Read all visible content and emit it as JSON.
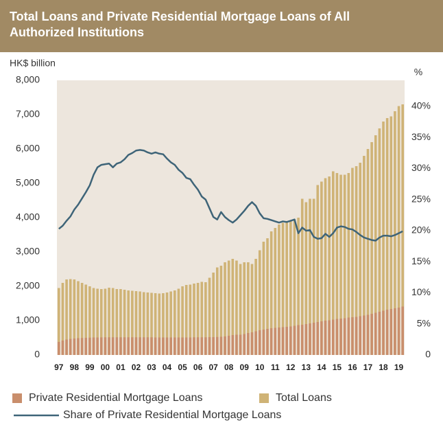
{
  "chart_data": {
    "type": "bar",
    "title": "Total Loans and Private Residential Mortgage Loans of All Authorized Institutions",
    "y_label": "HK$ billion",
    "y2_label": "%",
    "categories": [
      "97",
      null,
      null,
      null,
      "98",
      null,
      null,
      null,
      "99",
      null,
      null,
      null,
      "00",
      null,
      null,
      null,
      "01",
      null,
      null,
      null,
      "02",
      null,
      null,
      null,
      "03",
      null,
      null,
      null,
      "04",
      null,
      null,
      null,
      "05",
      null,
      null,
      null,
      "06",
      null,
      null,
      null,
      "07",
      null,
      null,
      null,
      "08",
      null,
      null,
      null,
      "09",
      null,
      null,
      null,
      "10",
      null,
      null,
      null,
      "11",
      null,
      null,
      null,
      "12",
      null,
      null,
      null,
      "13",
      null,
      null,
      null,
      "14",
      null,
      null,
      null,
      "15",
      null,
      null,
      null,
      "16",
      null,
      null,
      null,
      "17",
      null,
      null,
      null,
      "18",
      null,
      null,
      null,
      "19",
      null
    ],
    "series": [
      {
        "name": "Private Residential Mortgage Loans",
        "color": "#c98e6c",
        "values": [
          380,
          420,
          450,
          470,
          480,
          490,
          495,
          500,
          505,
          510,
          510,
          512,
          515,
          515,
          515,
          515,
          515,
          515,
          515,
          515,
          515,
          515,
          515,
          515,
          515,
          510,
          510,
          510,
          510,
          510,
          510,
          510,
          510,
          510,
          510,
          515,
          515,
          515,
          515,
          520,
          520,
          525,
          530,
          540,
          560,
          580,
          590,
          590,
          610,
          640,
          660,
          690,
          720,
          740,
          760,
          780,
          790,
          800,
          810,
          820,
          830,
          850,
          870,
          880,
          900,
          920,
          940,
          960,
          980,
          1000,
          1010,
          1030,
          1050,
          1060,
          1070,
          1090,
          1100,
          1110,
          1130,
          1150,
          1170,
          1200,
          1230,
          1260,
          1290,
          1320,
          1340,
          1360,
          1380,
          1410
        ]
      },
      {
        "name": "Total Loans",
        "color": "#cfb376",
        "values": [
          1950,
          2100,
          2200,
          2210,
          2200,
          2150,
          2100,
          2050,
          2000,
          1950,
          1930,
          1920,
          1930,
          1960,
          1950,
          1920,
          1920,
          1900,
          1880,
          1870,
          1860,
          1850,
          1830,
          1820,
          1810,
          1800,
          1790,
          1800,
          1820,
          1850,
          1880,
          1930,
          2000,
          2040,
          2050,
          2080,
          2100,
          2130,
          2120,
          2250,
          2400,
          2550,
          2600,
          2700,
          2750,
          2800,
          2750,
          2650,
          2700,
          2700,
          2650,
          2800,
          3050,
          3300,
          3400,
          3600,
          3700,
          3800,
          3850,
          3900,
          3900,
          3950,
          4000,
          4550,
          4450,
          4550,
          4550,
          4950,
          5050,
          5150,
          5200,
          5350,
          5300,
          5250,
          5250,
          5300,
          5450,
          5500,
          5600,
          5800,
          6000,
          6200,
          6400,
          6600,
          6800,
          6900,
          6950,
          7100,
          7250,
          7300
        ]
      },
      {
        "name": "Share of Private Residential Mortgage Loans",
        "type": "line",
        "axis": "y2",
        "color": "#3e6478",
        "values": [
          20.3,
          20.8,
          21.6,
          22.3,
          23.4,
          24.2,
          25.2,
          26.2,
          27.3,
          29.0,
          30.2,
          30.6,
          30.7,
          30.8,
          30.2,
          30.8,
          31.0,
          31.5,
          32.2,
          32.5,
          32.9,
          33.0,
          32.9,
          32.6,
          32.4,
          32.6,
          32.4,
          32.3,
          31.6,
          31.0,
          30.6,
          29.8,
          29.3,
          28.5,
          28.3,
          27.4,
          26.6,
          25.5,
          25.0,
          23.6,
          22.2,
          21.8,
          23.0,
          22.2,
          21.7,
          21.3,
          21.8,
          22.5,
          23.2,
          24.0,
          24.6,
          24.0,
          22.8,
          22.0,
          21.9,
          21.7,
          21.5,
          21.3,
          21.5,
          21.4,
          21.6,
          21.8,
          19.6,
          20.5,
          20.0,
          20.1,
          19.0,
          18.7,
          18.8,
          19.5,
          19.0,
          19.6,
          20.5,
          20.7,
          20.6,
          20.3,
          20.2,
          19.8,
          19.3,
          18.9,
          18.7,
          18.5,
          18.4,
          18.9,
          19.2,
          19.2,
          19.1,
          19.3,
          19.6,
          19.9
        ]
      }
    ],
    "ylim": [
      0,
      8000
    ],
    "yticks": [
      0,
      {
        "value": 1000,
        "label": "1,000"
      },
      {
        "value": 2000,
        "label": "2,000"
      },
      {
        "value": 3000,
        "label": "3,000"
      },
      {
        "value": 4000,
        "label": "4,000"
      },
      {
        "value": 5000,
        "label": "5,000"
      },
      {
        "value": 6000,
        "label": "6,000"
      },
      {
        "value": 7000,
        "label": "7,000"
      },
      {
        "value": 8000,
        "label": "8,000"
      }
    ],
    "y2lim": [
      0,
      44.2
    ],
    "y2ticks": [
      0,
      {
        "value": 5,
        "label": "5%"
      },
      {
        "value": 10,
        "label": "10%"
      },
      {
        "value": 15,
        "label": "15%"
      },
      {
        "value": 20,
        "label": "20%"
      },
      {
        "value": 25,
        "label": "25%"
      },
      {
        "value": 30,
        "label": "30%"
      },
      {
        "value": 35,
        "label": "35%"
      },
      {
        "value": 40,
        "label": "40%"
      }
    ],
    "plot_background": "#ede6dd"
  }
}
